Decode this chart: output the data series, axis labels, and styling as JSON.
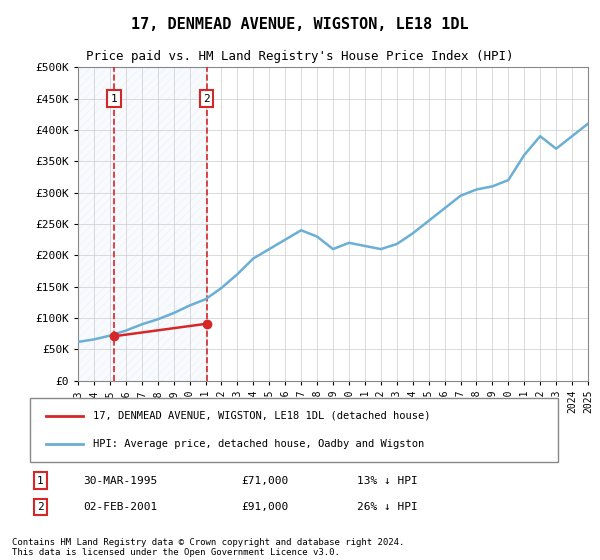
{
  "title": "17, DENMEAD AVENUE, WIGSTON, LE18 1DL",
  "subtitle": "Price paid vs. HM Land Registry's House Price Index (HPI)",
  "footer": "Contains HM Land Registry data © Crown copyright and database right 2024.\nThis data is licensed under the Open Government Licence v3.0.",
  "legend_line1": "17, DENMEAD AVENUE, WIGSTON, LE18 1DL (detached house)",
  "legend_line2": "HPI: Average price, detached house, Oadby and Wigston",
  "annotation1_label": "1",
  "annotation1_date": "30-MAR-1995",
  "annotation1_price": "£71,000",
  "annotation1_hpi": "13% ↓ HPI",
  "annotation2_label": "2",
  "annotation2_date": "02-FEB-2001",
  "annotation2_price": "£91,000",
  "annotation2_hpi": "26% ↓ HPI",
  "ylabel": "",
  "hpi_color": "#6baed6",
  "price_color": "#d62728",
  "vline_color": "#d62728",
  "annotation_box_color": "#d62728",
  "background_hatch_color": "#d0e4f7",
  "grid_color": "#cccccc",
  "ylim": [
    0,
    500000
  ],
  "yticks": [
    0,
    50000,
    100000,
    150000,
    200000,
    250000,
    300000,
    350000,
    400000,
    450000,
    500000
  ],
  "ytick_labels": [
    "£0",
    "£50K",
    "£100K",
    "£150K",
    "£200K",
    "£250K",
    "£300K",
    "£350K",
    "£400K",
    "£450K",
    "£500K"
  ],
  "hpi_years": [
    1993,
    1994,
    1995,
    1996,
    1997,
    1998,
    1999,
    2000,
    2001,
    2002,
    2003,
    2004,
    2005,
    2006,
    2007,
    2008,
    2009,
    2010,
    2011,
    2012,
    2013,
    2014,
    2015,
    2016,
    2017,
    2018,
    2019,
    2020,
    2021,
    2022,
    2023,
    2024,
    2025
  ],
  "hpi_values": [
    62000,
    66000,
    72000,
    80000,
    90000,
    98000,
    108000,
    120000,
    130000,
    148000,
    170000,
    195000,
    210000,
    225000,
    240000,
    230000,
    210000,
    220000,
    215000,
    210000,
    218000,
    235000,
    255000,
    275000,
    295000,
    305000,
    310000,
    320000,
    360000,
    390000,
    370000,
    390000,
    410000
  ],
  "price_paid_years": [
    1995.25,
    2001.08
  ],
  "price_paid_values": [
    71000,
    91000
  ],
  "vline1_x": 1995.25,
  "vline2_x": 2001.08,
  "xmin": 1993,
  "xmax": 2025,
  "xticks": [
    1993,
    1994,
    1995,
    1996,
    1997,
    1998,
    1999,
    2000,
    2001,
    2002,
    2003,
    2004,
    2005,
    2006,
    2007,
    2008,
    2009,
    2010,
    2011,
    2012,
    2013,
    2014,
    2015,
    2016,
    2017,
    2018,
    2019,
    2020,
    2021,
    2022,
    2023,
    2024,
    2025
  ]
}
